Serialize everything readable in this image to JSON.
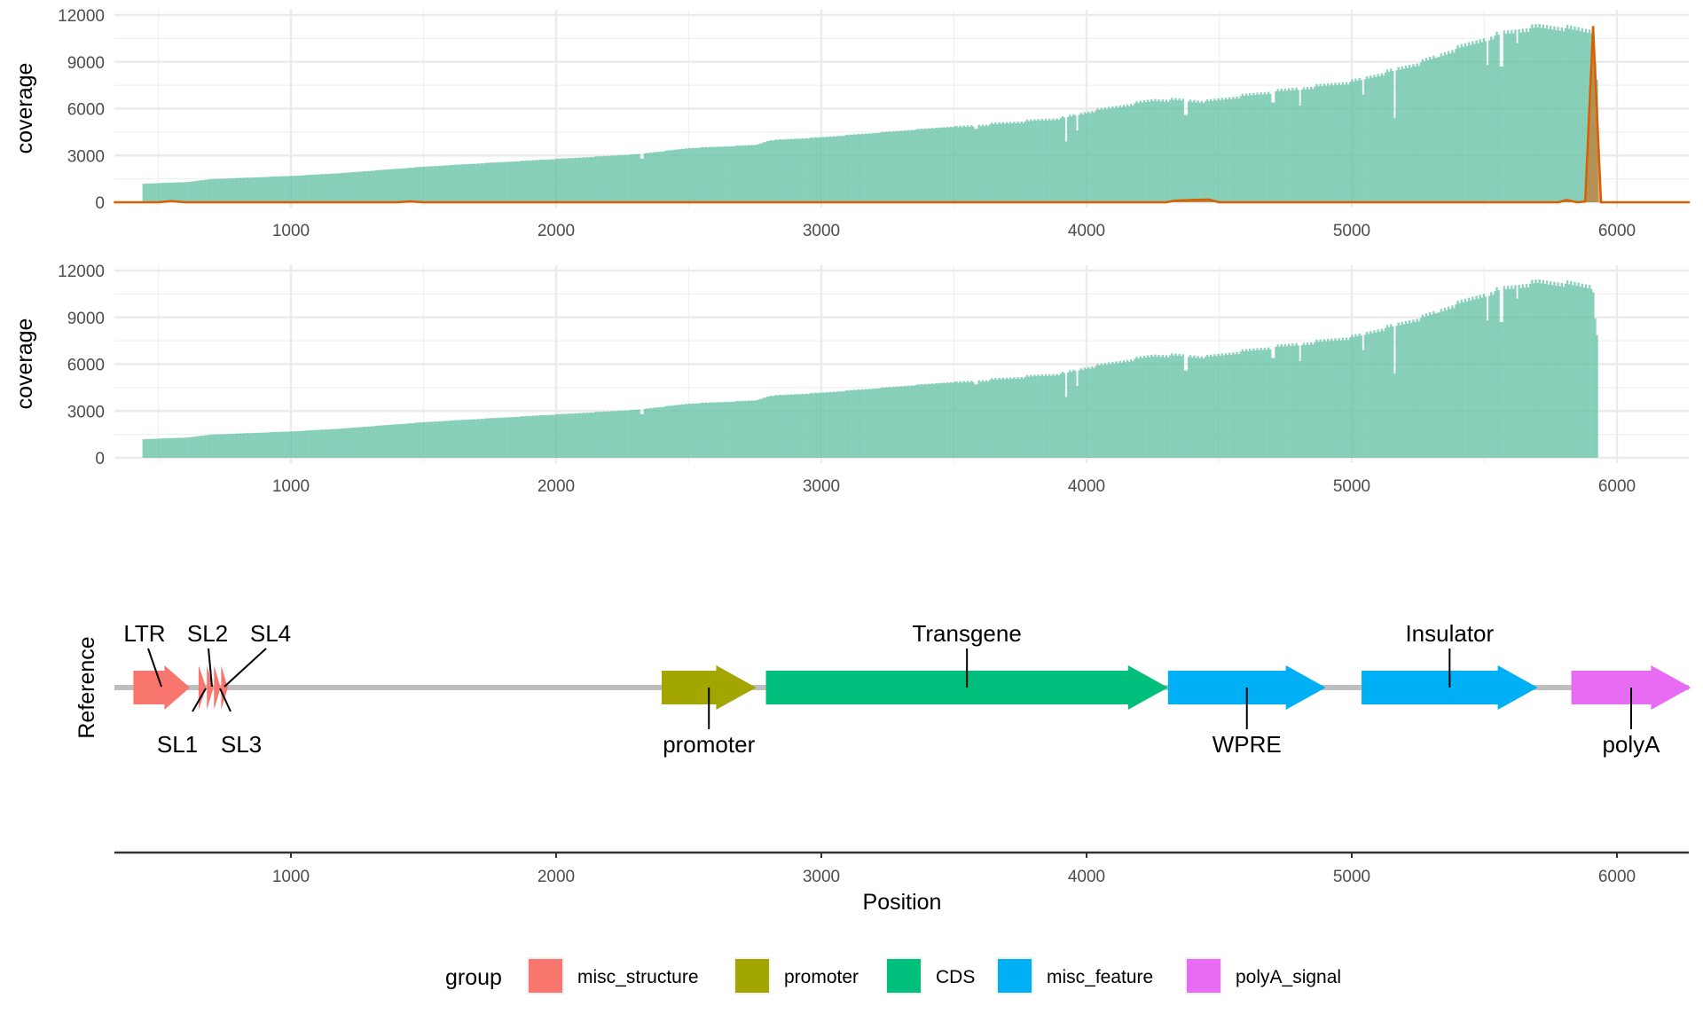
{
  "chart_data": [
    {
      "type": "bar",
      "panel": "coverage-top",
      "ylabel": "coverage",
      "xlim": [
        332,
        6275
      ],
      "ylim": [
        0,
        12600
      ],
      "yticks": [
        "0",
        "3000",
        "6000",
        "9000",
        "12000"
      ],
      "xticks": [
        "1000",
        "2000",
        "3000",
        "4000",
        "5000",
        "6000"
      ],
      "grid": true,
      "fill_color": "#66C2A5",
      "line_color": "#D95F02",
      "coverage_points": [
        [
          440,
          1200
        ],
        [
          600,
          1300
        ],
        [
          700,
          1500
        ],
        [
          1000,
          1700
        ],
        [
          1200,
          1900
        ],
        [
          1500,
          2300
        ],
        [
          2000,
          2800
        ],
        [
          2300,
          3100
        ],
        [
          2500,
          3500
        ],
        [
          2750,
          3700
        ],
        [
          2800,
          4000
        ],
        [
          3000,
          4200
        ],
        [
          3500,
          4900
        ],
        [
          3900,
          5500
        ],
        [
          4000,
          5900
        ],
        [
          4250,
          6700
        ],
        [
          4350,
          6700
        ],
        [
          4450,
          6600
        ],
        [
          4600,
          7000
        ],
        [
          5000,
          7900
        ],
        [
          5250,
          9100
        ],
        [
          5400,
          10100
        ],
        [
          5550,
          11000
        ],
        [
          5700,
          11500
        ],
        [
          5800,
          11400
        ],
        [
          5905,
          11200
        ],
        [
          5920,
          8000
        ]
      ],
      "coverage_dips": [
        [
          2320,
          2800
        ],
        [
          3580,
          4700
        ],
        [
          3920,
          3900
        ],
        [
          3960,
          4600
        ],
        [
          4370,
          5600
        ],
        [
          4700,
          6400
        ],
        [
          4800,
          6200
        ],
        [
          5040,
          6900
        ],
        [
          5160,
          5400
        ],
        [
          5320,
          9300
        ],
        [
          5510,
          8800
        ],
        [
          5560,
          8700
        ],
        [
          5620,
          10200
        ]
      ],
      "secondary_line_points": [
        [
          332,
          0
        ],
        [
          500,
          0
        ],
        [
          550,
          80
        ],
        [
          600,
          0
        ],
        [
          1400,
          0
        ],
        [
          1450,
          60
        ],
        [
          1500,
          0
        ],
        [
          4300,
          0
        ],
        [
          4330,
          100
        ],
        [
          4400,
          150
        ],
        [
          4460,
          180
        ],
        [
          4500,
          0
        ],
        [
          5780,
          0
        ],
        [
          5810,
          150
        ],
        [
          5850,
          0
        ],
        [
          5880,
          50
        ],
        [
          5910,
          11300
        ],
        [
          5940,
          0
        ],
        [
          6275,
          0
        ]
      ]
    },
    {
      "type": "bar",
      "panel": "coverage-bottom",
      "ylabel": "coverage",
      "xlim": [
        332,
        6275
      ],
      "ylim": [
        0,
        12600
      ],
      "yticks": [
        "0",
        "3000",
        "6000",
        "9000",
        "12000"
      ],
      "xticks": [
        "1000",
        "2000",
        "3000",
        "4000",
        "5000",
        "6000"
      ],
      "grid": true,
      "fill_color": "#66C2A5"
    },
    {
      "type": "gene-map",
      "panel": "reference",
      "ylabel": "Reference",
      "xlabel": "Position",
      "xlim": [
        332,
        6275
      ],
      "xticks": [
        "1000",
        "2000",
        "3000",
        "4000",
        "5000",
        "6000"
      ],
      "features": [
        {
          "name": "LTR",
          "group": "misc_structure",
          "start": 406,
          "end": 619,
          "label_side": "above"
        },
        {
          "name": "SL1",
          "group": "misc_structure",
          "start": 652,
          "end": 680,
          "label_side": "below"
        },
        {
          "name": "SL2",
          "group": "misc_structure",
          "start": 683,
          "end": 708,
          "label_side": "above"
        },
        {
          "name": "SL3",
          "group": "misc_structure",
          "start": 710,
          "end": 735,
          "label_side": "below"
        },
        {
          "name": "SL4",
          "group": "misc_structure",
          "start": 737,
          "end": 762,
          "label_side": "above"
        },
        {
          "name": "promoter",
          "group": "promoter",
          "start": 2398,
          "end": 2754,
          "label_side": "below"
        },
        {
          "name": "Transgene",
          "group": "CDS",
          "start": 2791,
          "end": 4307,
          "label_side": "above"
        },
        {
          "name": "WPRE",
          "group": "misc_feature",
          "start": 4307,
          "end": 4902,
          "label_side": "below"
        },
        {
          "name": "Insulator",
          "group": "misc_feature",
          "start": 5037,
          "end": 5701,
          "label_side": "above"
        },
        {
          "name": "polyA",
          "group": "polyA_signal",
          "start": 5828,
          "end": 6279,
          "label_side": "below"
        }
      ]
    }
  ],
  "legend": {
    "title": "group",
    "placement": "bottom",
    "items": [
      {
        "label": "misc_structure",
        "color": "#F8766D"
      },
      {
        "label": "promoter",
        "color": "#A3A500"
      },
      {
        "label": "CDS",
        "color": "#00BF7D"
      },
      {
        "label": "misc_feature",
        "color": "#00B0F6"
      },
      {
        "label": "polyA_signal",
        "color": "#E76BF3"
      }
    ]
  }
}
